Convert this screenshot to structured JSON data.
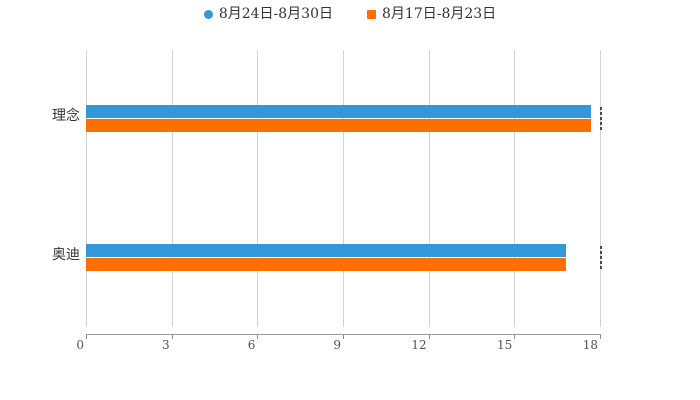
{
  "chart_data": {
    "type": "bar",
    "orientation": "horizontal",
    "categories": [
      "理念",
      "奥迪"
    ],
    "series": [
      {
        "name": "8月24日-8月30日",
        "color": "#3398da",
        "marker": "circle",
        "values": [
          17.7,
          16.8
        ]
      },
      {
        "name": "8月17日-8月23日",
        "color": "#ff6e00",
        "marker": "square",
        "values": [
          17.7,
          16.8
        ]
      }
    ],
    "xlim": [
      0,
      18
    ],
    "xticks": [
      0,
      3,
      6,
      9,
      12,
      15,
      18
    ],
    "legend_position": "top-center",
    "grid": "vertical",
    "gridline_color": "#d3d3d3",
    "axis_line_color": "#9a9a9a",
    "label_color": "#333333",
    "tick_label_color": "#555555"
  }
}
